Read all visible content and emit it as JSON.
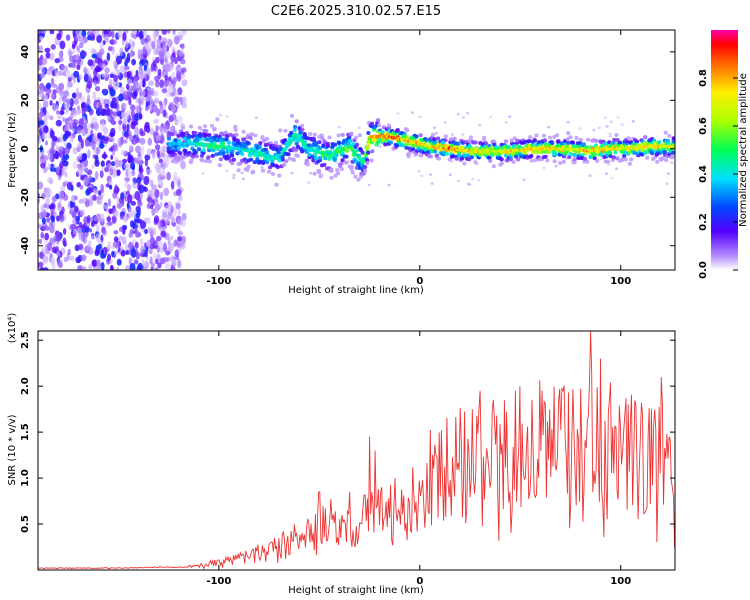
{
  "title": "C2E6.2025.310.02.57.E15",
  "chart_data": [
    {
      "type": "heatmap",
      "title": "C2E6.2025.310.02.57.E15",
      "xlabel": "Height of straight line (km)",
      "ylabel": "Frequency (Hz)",
      "xlim": [
        -190,
        127
      ],
      "ylim": [
        -50,
        49
      ],
      "xticks": [
        -100,
        0,
        100
      ],
      "xtick_labels": [
        "-100",
        "0",
        "100"
      ],
      "yticks": [
        -40,
        -20,
        0,
        20,
        40
      ],
      "ytick_labels": [
        "-40",
        "-20",
        "0",
        "20",
        "40"
      ],
      "noise_region_x": [
        -190,
        -117
      ],
      "colorbar": {
        "label": "Normalized spectral amplitude",
        "range": [
          0,
          1
        ],
        "ticks": [
          0,
          0.2,
          0.4,
          0.6,
          0.8
        ],
        "tick_labels": [
          "0.0",
          "0.2",
          "0.4",
          "0.6",
          "0.8"
        ]
      },
      "ridge": [
        {
          "x": -125,
          "f": 2,
          "amp": 0.35
        },
        {
          "x": -110,
          "f": 2,
          "amp": 0.45
        },
        {
          "x": -100,
          "f": 1,
          "amp": 0.5
        },
        {
          "x": -90,
          "f": 0,
          "amp": 0.4
        },
        {
          "x": -80,
          "f": -2,
          "amp": 0.45
        },
        {
          "x": -70,
          "f": -4,
          "amp": 0.4
        },
        {
          "x": -62,
          "f": 6,
          "amp": 0.45
        },
        {
          "x": -55,
          "f": 0,
          "amp": 0.45
        },
        {
          "x": -45,
          "f": -3,
          "amp": 0.5
        },
        {
          "x": -35,
          "f": 1,
          "amp": 0.55
        },
        {
          "x": -28,
          "f": -6,
          "amp": 0.45
        },
        {
          "x": -25,
          "f": 5,
          "amp": 0.75
        },
        {
          "x": -15,
          "f": 5,
          "amp": 0.85
        },
        {
          "x": -5,
          "f": 3,
          "amp": 0.8
        },
        {
          "x": 5,
          "f": 1,
          "amp": 0.75
        },
        {
          "x": 15,
          "f": 0,
          "amp": 0.85
        },
        {
          "x": 25,
          "f": -1,
          "amp": 0.75
        },
        {
          "x": 35,
          "f": -1,
          "amp": 0.7
        },
        {
          "x": 45,
          "f": -1,
          "amp": 0.75
        },
        {
          "x": 55,
          "f": 0,
          "amp": 0.8
        },
        {
          "x": 65,
          "f": 0,
          "amp": 0.75
        },
        {
          "x": 75,
          "f": 0,
          "amp": 0.7
        },
        {
          "x": 85,
          "f": -1,
          "amp": 0.8
        },
        {
          "x": 95,
          "f": 0,
          "amp": 0.75
        },
        {
          "x": 105,
          "f": 0,
          "amp": 0.7
        },
        {
          "x": 115,
          "f": 1,
          "amp": 0.75
        },
        {
          "x": 127,
          "f": 1,
          "amp": 0.7
        }
      ]
    },
    {
      "type": "line",
      "xlabel": "Height of straight line (km)",
      "ylabel": "SNR (10 * v/v)",
      "y_multiplier": "(x10⁴)",
      "xlim": [
        -190,
        127
      ],
      "ylim": [
        0,
        2.6
      ],
      "xticks": [
        -100,
        0,
        100
      ],
      "xtick_labels": [
        "-100",
        "0",
        "100"
      ],
      "yticks": [
        0.5,
        1.0,
        1.5,
        2.0,
        2.5
      ],
      "ytick_labels": [
        "0.5",
        "1.0",
        "1.5",
        "2.0",
        "2.5"
      ],
      "color": "#ee3333",
      "series": [
        {
          "name": "SNR",
          "x": [
            -190,
            -170,
            -150,
            -130,
            -115,
            -105,
            -100,
            -90,
            -80,
            -70,
            -60,
            -50,
            -45,
            -40,
            -35,
            -30,
            -25,
            -20,
            -15,
            -10,
            -5,
            0,
            5,
            10,
            15,
            20,
            25,
            30,
            40,
            50,
            60,
            70,
            80,
            85,
            90,
            100,
            110,
            120,
            127
          ],
          "y": [
            0.02,
            0.02,
            0.02,
            0.03,
            0.03,
            0.06,
            0.08,
            0.12,
            0.18,
            0.25,
            0.33,
            0.4,
            0.5,
            0.45,
            0.4,
            0.5,
            0.55,
            0.6,
            0.6,
            0.65,
            0.75,
            0.85,
            0.95,
            1.0,
            1.05,
            1.1,
            1.1,
            1.15,
            1.2,
            1.25,
            1.3,
            1.3,
            1.3,
            1.35,
            1.3,
            1.25,
            1.2,
            1.15,
            1.1
          ],
          "peaks": [
            {
              "x": -50,
              "y": 0.85
            },
            {
              "x": -35,
              "y": 0.85
            },
            {
              "x": -25,
              "y": 1.45
            },
            {
              "x": -22,
              "y": 1.3
            },
            {
              "x": 8,
              "y": 1.25
            },
            {
              "x": 30,
              "y": 1.95
            },
            {
              "x": 50,
              "y": 2.0
            },
            {
              "x": 85,
              "y": 2.6
            },
            {
              "x": 90,
              "y": 2.3
            },
            {
              "x": 120,
              "y": 2.1
            }
          ]
        }
      ]
    }
  ]
}
